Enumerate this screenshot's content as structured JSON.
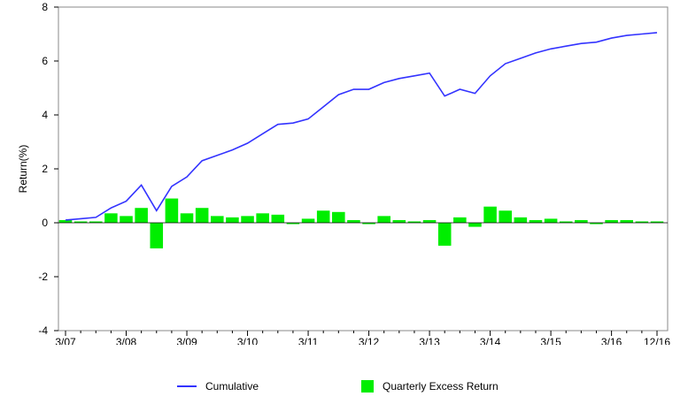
{
  "chart_data": {
    "type": "bar+line",
    "title": "",
    "xlabel": "",
    "ylabel": "Return(%)",
    "ylim": [
      -4,
      8
    ],
    "yticks": [
      "-4",
      "-2",
      "0",
      "2",
      "4",
      "6",
      "8"
    ],
    "xtick_labels": [
      "3/07",
      "3/08",
      "3/09",
      "3/10",
      "3/11",
      "3/12",
      "3/13",
      "3/14",
      "3/15",
      "3/16",
      "12/16"
    ],
    "quarters": [
      "3/07",
      "6/07",
      "9/07",
      "12/07",
      "3/08",
      "6/08",
      "9/08",
      "12/08",
      "3/09",
      "6/09",
      "9/09",
      "12/09",
      "3/10",
      "6/10",
      "9/10",
      "12/10",
      "3/11",
      "6/11",
      "9/11",
      "12/11",
      "3/12",
      "6/12",
      "9/12",
      "12/12",
      "3/13",
      "6/13",
      "9/13",
      "12/13",
      "3/14",
      "6/14",
      "9/14",
      "12/14",
      "3/15",
      "6/15",
      "9/15",
      "12/15",
      "3/16",
      "6/16",
      "9/16",
      "12/16"
    ],
    "series": [
      {
        "name": "Cumulative",
        "color": "#3333ff",
        "values": [
          0.1,
          0.15,
          0.2,
          0.55,
          0.8,
          1.4,
          0.45,
          1.35,
          1.7,
          2.3,
          2.5,
          2.7,
          2.95,
          3.3,
          3.65,
          3.7,
          3.85,
          4.3,
          4.75,
          4.95,
          4.95,
          5.2,
          5.35,
          5.45,
          5.55,
          4.7,
          4.95,
          4.8,
          5.45,
          5.9,
          6.1,
          6.3,
          6.45,
          6.55,
          6.65,
          6.7,
          6.85,
          6.95,
          7.0,
          7.05
        ]
      },
      {
        "name": "Quarterly Excess Return",
        "color": "#00ee00",
        "values": [
          0.1,
          0.05,
          0.05,
          0.35,
          0.25,
          0.55,
          -0.95,
          0.9,
          0.35,
          0.55,
          0.25,
          0.2,
          0.25,
          0.35,
          0.3,
          -0.05,
          0.15,
          0.45,
          0.4,
          0.1,
          -0.05,
          0.25,
          0.1,
          0.05,
          0.1,
          -0.85,
          0.2,
          -0.15,
          0.6,
          0.45,
          0.2,
          0.1,
          0.15,
          0.05,
          0.1,
          -0.05,
          0.1,
          0.1,
          0.05,
          0.05
        ]
      }
    ],
    "grid": false,
    "legend_position": "bottom"
  }
}
